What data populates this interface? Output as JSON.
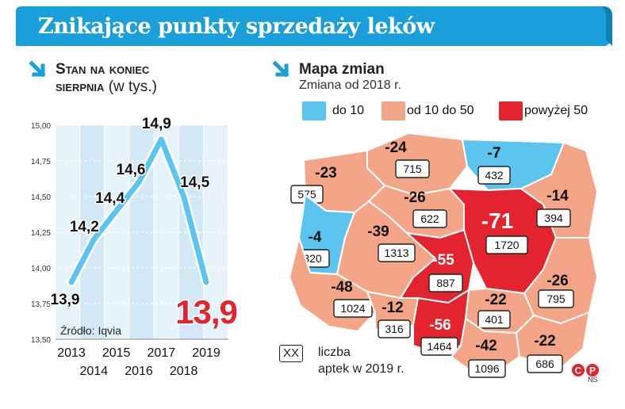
{
  "title": "Znikające punkty sprzedaży leków",
  "left_section": {
    "title_line1": "Stan na koniec",
    "title_line2": "sierpnia",
    "subtitle": "(w tys.)"
  },
  "right_section": {
    "title": "Mapa zmian",
    "subtitle": "Zmiana od 2018 r.",
    "legend": [
      {
        "label": "do 10",
        "color": "#5bc5ef"
      },
      {
        "label": "od 10 do 50",
        "color": "#f4a587"
      },
      {
        "label": "powyżej 50",
        "color": "#e3242f"
      }
    ],
    "footnote_box": "XX",
    "footnote_line1": "liczba",
    "footnote_line2": "aptek w 2019 r."
  },
  "source": "Źródło: Iqvia",
  "credit": "NS",
  "chart_data": {
    "type": "line",
    "x": [
      "2013",
      "2014",
      "2015",
      "2016",
      "2017",
      "2018",
      "2019"
    ],
    "x_row1": [
      "2013",
      "2015",
      "2017",
      "2019"
    ],
    "x_row2": [
      "2014",
      "2016",
      "2018"
    ],
    "values": [
      13.9,
      14.2,
      14.4,
      14.6,
      14.9,
      14.5,
      13.9
    ],
    "data_labels": [
      "13,9",
      "14,2",
      "14,4",
      "14,6",
      "14,9",
      "14,5",
      "13,9"
    ],
    "highlight_label": "13,9",
    "ylim": [
      13.5,
      15.0
    ],
    "yticks": [
      15.0,
      14.75,
      14.5,
      14.25,
      14.0,
      13.75,
      13.5
    ],
    "ytick_labels": [
      "15,00",
      "14,75",
      "14,50",
      "14,25",
      "14,00",
      "13,75",
      "13,50"
    ],
    "line_color": "#5bc5ef",
    "highlight_color": "#e3242f"
  },
  "map_regions": [
    {
      "change": "-24",
      "count": "715",
      "category": "medium"
    },
    {
      "change": "-7",
      "count": "432",
      "category": "low"
    },
    {
      "change": "-23",
      "count": "575",
      "category": "medium"
    },
    {
      "change": "-26",
      "count": "622",
      "category": "medium"
    },
    {
      "change": "-71",
      "count": "1720",
      "category": "high"
    },
    {
      "change": "-14",
      "count": "394",
      "category": "medium"
    },
    {
      "change": "-4",
      "count": "320",
      "category": "low"
    },
    {
      "change": "-39",
      "count": "1313",
      "category": "medium"
    },
    {
      "change": "-55",
      "count": "887",
      "category": "high"
    },
    {
      "change": "-26",
      "count": "795",
      "category": "medium"
    },
    {
      "change": "-48",
      "count": "1024",
      "category": "medium"
    },
    {
      "change": "-22",
      "count": "401",
      "category": "medium"
    },
    {
      "change": "-12",
      "count": "316",
      "category": "medium"
    },
    {
      "change": "-56",
      "count": "1464",
      "category": "high"
    },
    {
      "change": "-42",
      "count": "1096",
      "category": "medium"
    },
    {
      "change": "-22",
      "count": "686",
      "category": "medium"
    }
  ]
}
